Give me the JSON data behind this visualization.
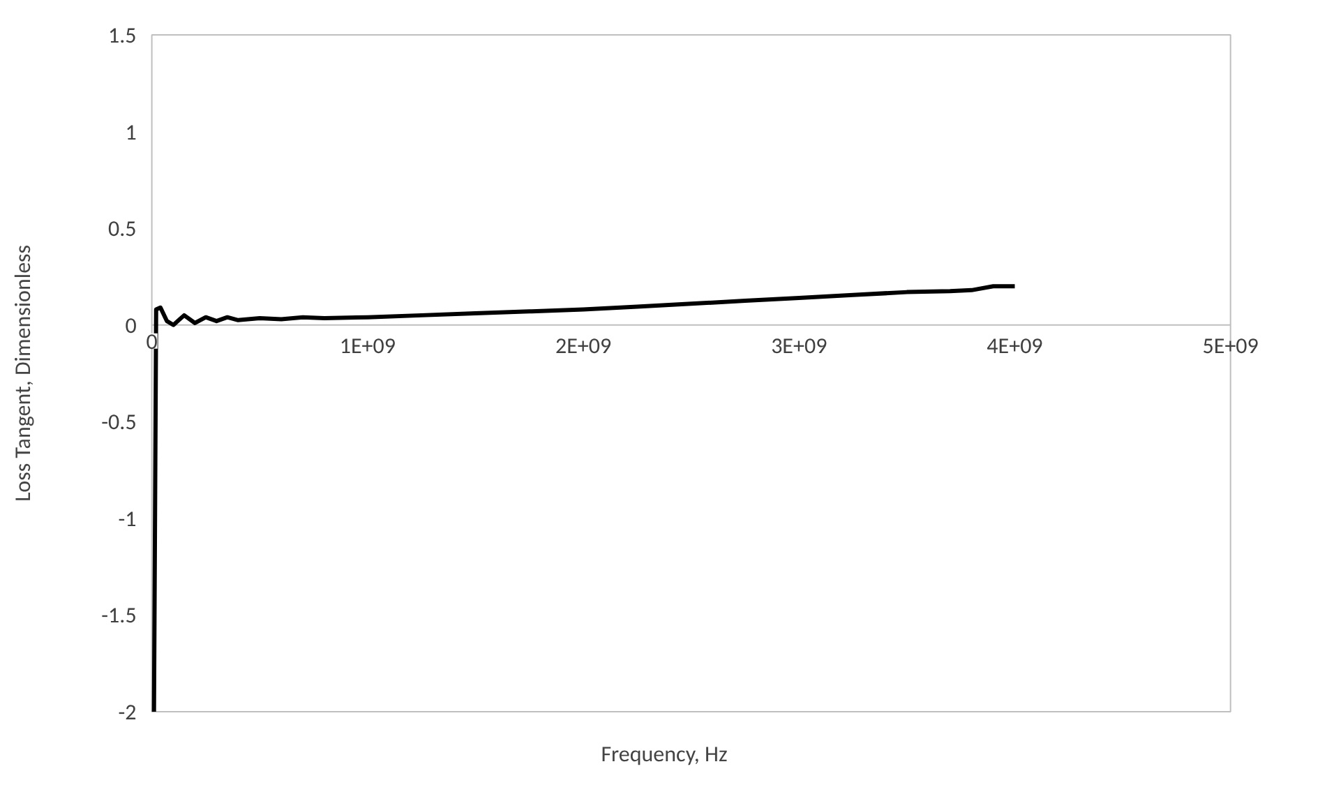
{
  "chart_data": {
    "type": "line",
    "xlabel": "Frequency, Hz",
    "ylabel": "Loss Tangent, Dimensionless",
    "x": [
      10000000.0,
      20000000.0,
      40000000.0,
      70000000.0,
      100000000.0,
      150000000.0,
      200000000.0,
      250000000.0,
      300000000.0,
      350000000.0,
      400000000.0,
      500000000.0,
      600000000.0,
      700000000.0,
      800000000.0,
      1000000000.0,
      1250000000.0,
      1500000000.0,
      1750000000.0,
      2000000000.0,
      2250000000.0,
      2500000000.0,
      2750000000.0,
      3000000000.0,
      3250000000.0,
      3500000000.0,
      3700000000.0,
      3800000000.0,
      3900000000.0,
      4000000000.0
    ],
    "series": [
      {
        "color": "#000000",
        "values": [
          -2,
          0.08,
          0.09,
          0.02,
          0.0,
          0.05,
          0.01,
          0.04,
          0.02,
          0.04,
          0.025,
          0.035,
          0.03,
          0.04,
          0.035,
          0.04,
          0.05,
          0.06,
          0.07,
          0.08,
          0.095,
          0.11,
          0.125,
          0.14,
          0.155,
          0.17,
          0.175,
          0.18,
          0.2,
          0.2
        ]
      }
    ],
    "xlim": [
      0,
      5000000000.0
    ],
    "xticks": [
      0,
      {
        "value": 1000000000.0,
        "label": "1E+09"
      },
      {
        "value": 2000000000.0,
        "label": "2E+09"
      },
      {
        "value": 3000000000.0,
        "label": "3E+09"
      },
      {
        "value": 4000000000.0,
        "label": "4E+09"
      },
      {
        "value": 5000000000.0,
        "label": "5E+09"
      }
    ],
    "ylim": [
      -2,
      1.5
    ],
    "yticks": [
      -2,
      -1.5,
      -1,
      -0.5,
      0,
      0.5,
      1,
      1.5
    ],
    "grid": false,
    "legend": false,
    "marker": "none",
    "line_style": "solid"
  }
}
